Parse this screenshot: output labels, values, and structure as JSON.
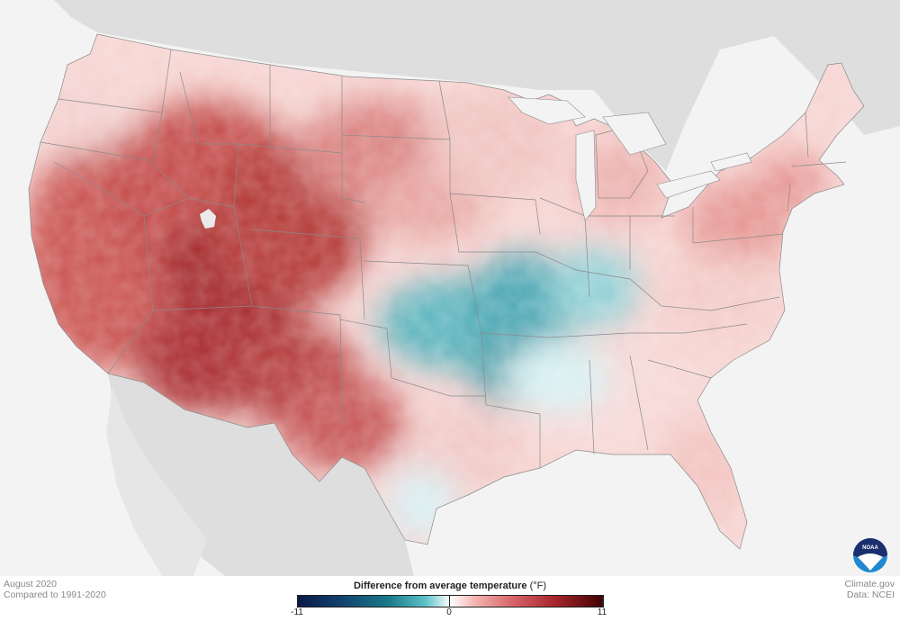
{
  "meta": {
    "date": "August 2020",
    "baseline": "Compared to 1991-2020",
    "source_site": "Climate.gov",
    "data_source": "Data: NCEI"
  },
  "legend": {
    "title": "Difference from average temperature",
    "unit": "(°F)",
    "min_label": "-11",
    "mid_label": "0",
    "max_label": "11",
    "colors": [
      "#0a1a47",
      "#12406e",
      "#1a7b8b",
      "#5fc3c8",
      "#ffffff",
      "#f4b4b0",
      "#d9676b",
      "#a8262c",
      "#400204"
    ]
  },
  "logo": {
    "text": "NOAA",
    "colors": {
      "top": "#1b2f6e",
      "bottom": "#1e88d0"
    }
  },
  "map": {
    "background": "#f3f3f3",
    "land_outside": "#dcdcdc",
    "state_border": "#8a8a8a"
  }
}
